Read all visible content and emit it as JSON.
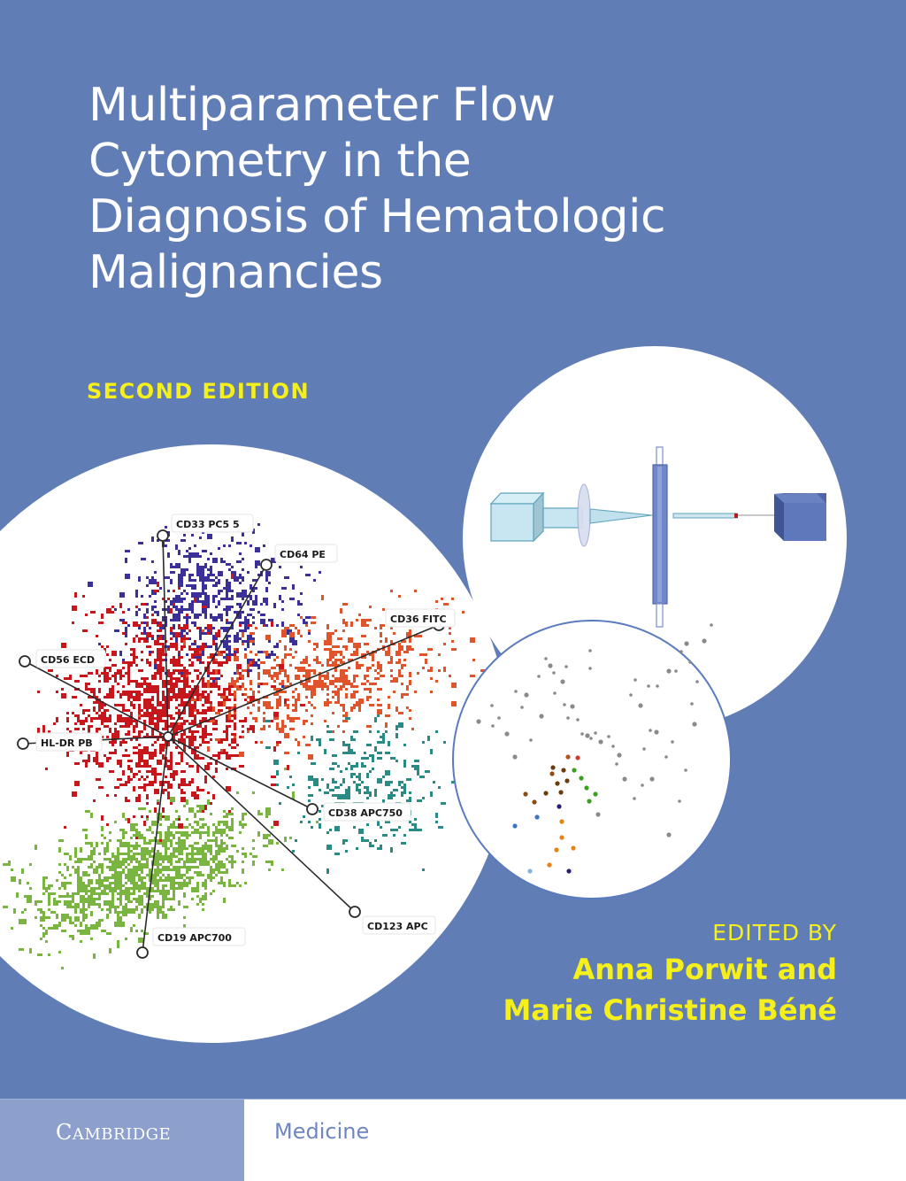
{
  "colors": {
    "background": "#617db6",
    "title_text": "#ffffff",
    "accent_yellow": "#f5ef1b",
    "circle_fill": "#ffffff",
    "circle_outline": "#5b7bbf",
    "brand_panel": "#8d9fcc",
    "series_text": "#6f86c0"
  },
  "title": {
    "lines": [
      "Multiparameter Flow",
      "Cytometry in the",
      "Diagnosis of Hematologic",
      "Malignancies"
    ]
  },
  "edition": "SECOND EDITION",
  "editors": {
    "label": "EDITED BY",
    "lines": [
      "Anna Porwit and",
      "Marie Christine Béné"
    ]
  },
  "illustration": {
    "radar_plot": {
      "axes": [
        {
          "label": "CD33 PC5.5",
          "display": "CD33 PC5 5"
        },
        {
          "label": "CD64 PE",
          "display": "CD64 PE"
        },
        {
          "label": "CD36 FITC",
          "display": "CD36 FITC"
        },
        {
          "label": "CD56 ECD",
          "display": "CD56 ECD"
        },
        {
          "label": "HL-DR PB",
          "display": "HL-DR PB"
        },
        {
          "label": "CD38 APC750",
          "display": "CD38 APC750"
        },
        {
          "label": "CD123 APC",
          "display": "CD123 APC"
        },
        {
          "label": "CD19 APC700",
          "display": "CD19 APC700"
        }
      ],
      "populations": [
        {
          "color": "#c8161d",
          "name": "red"
        },
        {
          "color": "#3b2f9a",
          "name": "blue-violet"
        },
        {
          "color": "#e0532b",
          "name": "orange-red"
        },
        {
          "color": "#7ab441",
          "name": "green"
        },
        {
          "color": "#2a8a84",
          "name": "teal"
        }
      ]
    },
    "instrument_diagram": "laser-lens-flowcell-fiber-detector",
    "minimum_spanning_tree": "grey-and-colored-node-tree"
  },
  "footer": {
    "publisher_first": "C",
    "publisher_rest": "AMBRIDGE",
    "series": "Medicine"
  }
}
